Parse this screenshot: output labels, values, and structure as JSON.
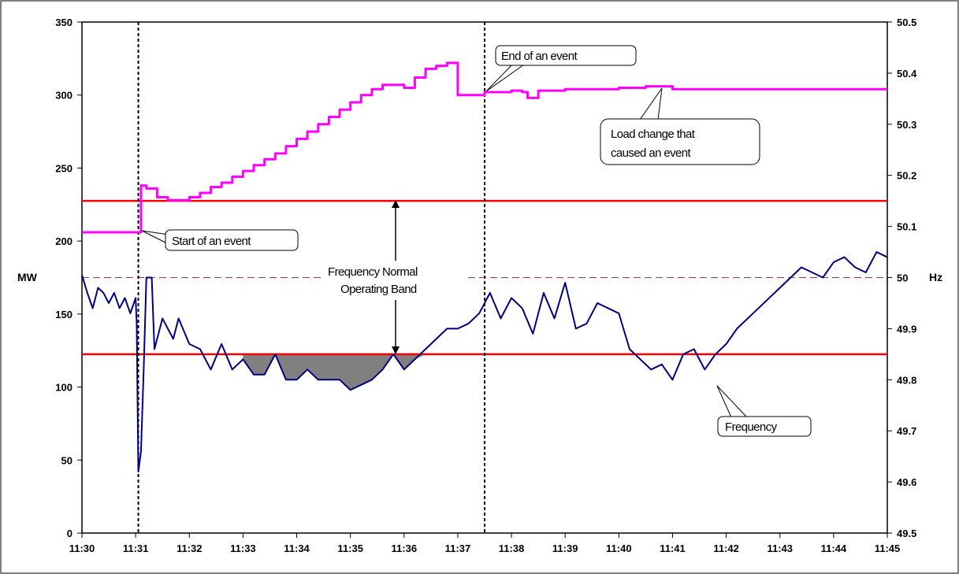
{
  "chart_data": {
    "type": "line",
    "x_ticks": [
      "11:30",
      "11:31",
      "11:32",
      "11:33",
      "11:34",
      "11:35",
      "11:36",
      "11:37",
      "11:38",
      "11:39",
      "11:40",
      "11:41",
      "11:42",
      "11:43",
      "11:44",
      "11:45"
    ],
    "x_range_minutes": [
      0,
      15
    ],
    "y_left": {
      "label": "MW",
      "range": [
        0,
        350
      ],
      "ticks": [
        "0",
        "50",
        "100",
        "150",
        "200",
        "250",
        "300",
        "350"
      ]
    },
    "y_right": {
      "label": "Hz",
      "range": [
        49.5,
        50.5
      ],
      "ticks": [
        "49.5",
        "49.6",
        "49.7",
        "49.8",
        "49.9",
        "50",
        "50.1",
        "50.2",
        "50.3",
        "50.4",
        "50.5"
      ]
    },
    "colors": {
      "load": "#ff00ff",
      "frequency": "#000080",
      "band": "#ff0000",
      "nominal": "#993366",
      "fill": "#808080",
      "event_marker": "#000000"
    },
    "band_hz": [
      49.85,
      50.15
    ],
    "nominal_hz": 50.0,
    "event_start_min": 1.05,
    "event_end_min": 7.5,
    "series": [
      {
        "key": "load",
        "axis": "left",
        "x": [
          0,
          1.05,
          1.1,
          1.2,
          1.4,
          1.6,
          1.8,
          2.0,
          2.2,
          2.4,
          2.6,
          2.8,
          3.0,
          3.2,
          3.4,
          3.6,
          3.8,
          4.0,
          4.2,
          4.4,
          4.6,
          4.8,
          5.0,
          5.2,
          5.4,
          5.6,
          5.8,
          6.0,
          6.2,
          6.4,
          6.6,
          6.8,
          7.0,
          7.2,
          7.5,
          7.8,
          8.0,
          8.2,
          8.3,
          8.5,
          9.0,
          9.5,
          10.0,
          10.3,
          10.5,
          10.8,
          11.0,
          12.0,
          13.0,
          14.0,
          15.0
        ],
        "values": [
          206,
          206,
          238,
          236,
          230,
          228,
          228,
          230,
          233,
          237,
          240,
          244,
          248,
          252,
          256,
          260,
          265,
          270,
          275,
          280,
          285,
          290,
          295,
          300,
          304,
          307,
          307,
          305,
          312,
          318,
          320,
          322,
          300,
          300,
          302,
          302,
          303,
          302,
          298,
          303,
          304,
          304,
          305,
          305,
          306,
          306,
          304,
          304,
          304,
          304,
          304
        ]
      },
      {
        "key": "frequency",
        "axis": "right",
        "x": [
          0,
          0.1,
          0.2,
          0.3,
          0.4,
          0.5,
          0.6,
          0.7,
          0.8,
          0.9,
          1.0,
          1.02,
          1.05,
          1.1,
          1.15,
          1.2,
          1.3,
          1.35,
          1.5,
          1.7,
          1.8,
          2.0,
          2.2,
          2.4,
          2.6,
          2.8,
          3.0,
          3.2,
          3.4,
          3.6,
          3.8,
          4.0,
          4.2,
          4.4,
          4.6,
          4.8,
          5.0,
          5.2,
          5.4,
          5.6,
          5.8,
          6.0,
          6.2,
          6.4,
          6.6,
          6.8,
          7.0,
          7.2,
          7.4,
          7.5,
          7.6,
          7.8,
          8.0,
          8.2,
          8.4,
          8.6,
          8.8,
          9.0,
          9.2,
          9.4,
          9.6,
          9.8,
          10.0,
          10.2,
          10.4,
          10.6,
          10.8,
          11.0,
          11.2,
          11.4,
          11.6,
          11.8,
          12.0,
          12.2,
          12.4,
          12.6,
          12.8,
          13.0,
          13.2,
          13.4,
          13.6,
          13.8,
          14.0,
          14.2,
          14.4,
          14.6,
          14.8,
          15.0
        ],
        "values": [
          50.005,
          49.97,
          49.94,
          49.98,
          49.97,
          49.95,
          49.97,
          49.94,
          49.96,
          49.93,
          49.96,
          49.91,
          49.62,
          49.66,
          49.82,
          50.0,
          50.0,
          49.86,
          49.92,
          49.88,
          49.92,
          49.87,
          49.86,
          49.82,
          49.87,
          49.82,
          49.84,
          49.81,
          49.81,
          49.85,
          49.8,
          49.8,
          49.82,
          49.8,
          49.8,
          49.8,
          49.78,
          49.79,
          49.8,
          49.82,
          49.85,
          49.82,
          49.84,
          49.86,
          49.88,
          49.9,
          49.9,
          49.91,
          49.93,
          49.95,
          49.97,
          49.92,
          49.96,
          49.94,
          49.89,
          49.97,
          49.92,
          49.99,
          49.9,
          49.91,
          49.95,
          49.94,
          49.93,
          49.86,
          49.84,
          49.82,
          49.83,
          49.8,
          49.85,
          49.86,
          49.82,
          49.85,
          49.87,
          49.9,
          49.92,
          49.94,
          49.96,
          49.98,
          50.0,
          50.02,
          50.01,
          50.0,
          50.03,
          50.04,
          50.02,
          50.01,
          50.05,
          50.04
        ]
      }
    ],
    "annotations": {
      "start": "Start of an event",
      "end": "End of an event",
      "load_change_1": "Load change that",
      "load_change_2": "caused an event",
      "band_1": "Frequency Normal",
      "band_2": "Operating Band",
      "frequency": "Frequency"
    }
  }
}
